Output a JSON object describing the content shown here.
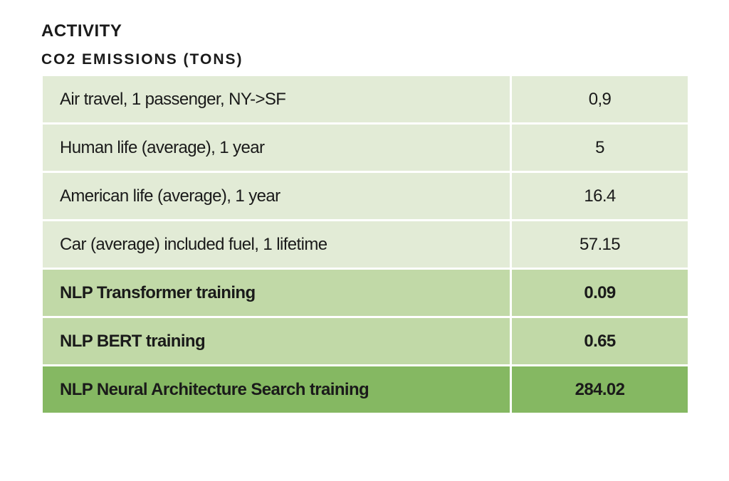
{
  "header": {
    "title": "ACTIVITY",
    "subtitle": "CO2 EMISSIONS (TONS)"
  },
  "table": {
    "rows": [
      [
        "Air travel, 1 passenger, NY->SF",
        "0,9"
      ],
      [
        "Human life (average), 1 year",
        "5"
      ],
      [
        "American life (average), 1 year",
        "16.4"
      ],
      [
        "Car (average) included fuel, 1 lifetime",
        "57.15"
      ],
      [
        "NLP Transformer training",
        "0.09"
      ],
      [
        "NLP BERT training",
        "0.65"
      ],
      [
        "NLP Neural Architecture Search training",
        "284.02"
      ]
    ]
  }
}
